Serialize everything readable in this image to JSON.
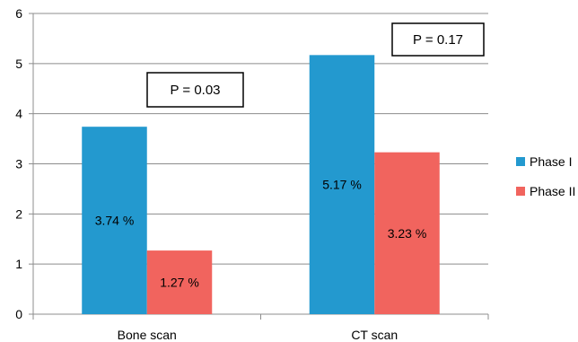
{
  "chart_data": {
    "type": "bar",
    "categories": [
      "Bone scan",
      "CT scan"
    ],
    "series": [
      {
        "name": "Phase I",
        "values": [
          3.74,
          5.17
        ],
        "labels": [
          "3.74 %",
          "5.17 %"
        ],
        "color": "#2399cf"
      },
      {
        "name": "Phase II",
        "values": [
          1.27,
          3.23
        ],
        "labels": [
          "1.27 %",
          "3.23 %"
        ],
        "color": "#f1645e"
      }
    ],
    "annotations": [
      "P = 0.03",
      "P = 0.17"
    ],
    "yticks": [
      "0",
      "1",
      "2",
      "3",
      "4",
      "5",
      "6"
    ],
    "ylim": [
      0,
      6
    ],
    "grid": true,
    "legend_position": "right",
    "title": "",
    "xlabel": "",
    "ylabel": ""
  }
}
